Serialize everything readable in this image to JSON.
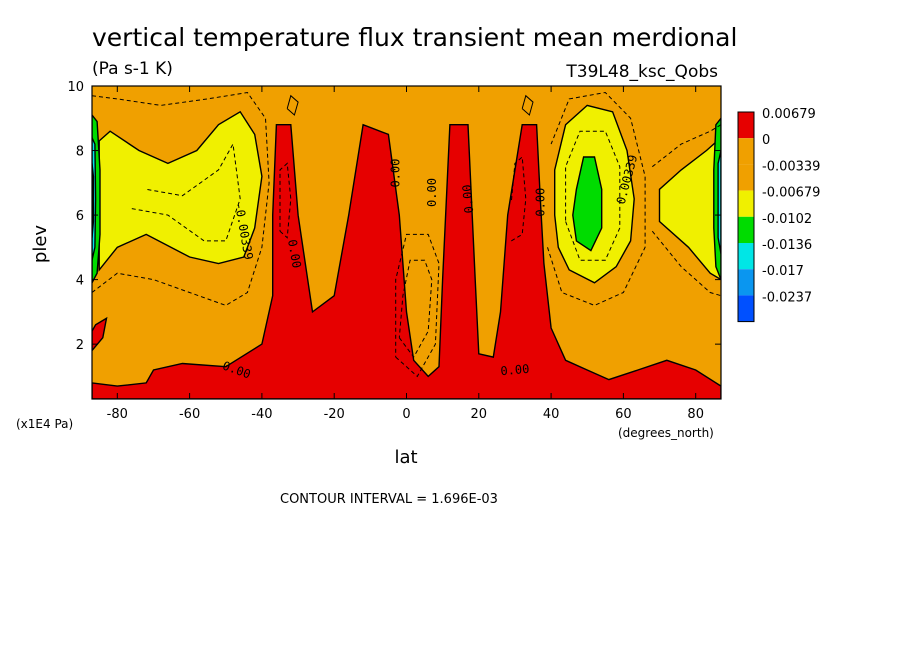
{
  "chart_data": {
    "type": "heatmap",
    "title": "vertical temperature flux transient mean merdional",
    "units": "(Pa s-1 K)",
    "experiment": "T39L48_ksc_Qobs",
    "xlabel": "lat",
    "ylabel": "plev",
    "x_unit": "(degrees_north)",
    "y_unit": "(x1E4 Pa)",
    "xlim": [
      -87,
      87
    ],
    "ylim": [
      10,
      0.3
    ],
    "x_ticks": [
      -80,
      -60,
      -40,
      -20,
      0,
      20,
      40,
      60,
      80
    ],
    "x_tick_labels": [
      "-80",
      "-60",
      "-40",
      "-20",
      "0",
      "20",
      "40",
      "60",
      "80"
    ],
    "y_ticks": [
      2,
      4,
      6,
      8,
      10
    ],
    "y_tick_labels": [
      "2",
      "4",
      "6",
      "8",
      "10"
    ],
    "contour_interval_label": "CONTOUR INTERVAL = 1.696E-03",
    "grid": false,
    "legend_position": "right",
    "levels": [
      {
        "label": "0.00679",
        "color": "#e60000"
      },
      {
        "label": "0",
        "color": "#f0a000"
      },
      {
        "label": "-0.00339",
        "color": "#f0a000"
      },
      {
        "label": "-0.00679",
        "color": "#f0f000"
      },
      {
        "label": "-0.0102",
        "color": "#00dc00"
      },
      {
        "label": "-0.0136",
        "color": "#00e6e6"
      },
      {
        "label": "-0.017",
        "color": "#0a96f0"
      },
      {
        "label": "-0.0237",
        "color": "#0050ff"
      }
    ],
    "legend_colors": [
      "#e60000",
      "#f0a000",
      "#f0a000",
      "#f0f000",
      "#00dc00",
      "#00e6e6",
      "#0a96f0",
      "#0050ff"
    ],
    "regions": [
      {
        "name": "positive-flux",
        "color": "#e60000",
        "polygon": [
          [
            -87,
            0.3
          ],
          [
            87,
            0.3
          ],
          [
            87,
            0.7
          ],
          [
            80,
            1.2
          ],
          [
            72,
            1.5
          ],
          [
            64,
            1.2
          ],
          [
            56,
            0.9
          ],
          [
            50,
            1.2
          ],
          [
            44,
            1.5
          ],
          [
            40,
            2.5
          ],
          [
            38,
            4.5
          ],
          [
            37,
            6.5
          ],
          [
            36,
            8.8
          ],
          [
            32,
            8.8
          ],
          [
            28,
            6
          ],
          [
            26,
            3
          ],
          [
            24,
            1.6
          ],
          [
            20,
            1.7
          ],
          [
            19,
            4
          ],
          [
            17,
            8.8
          ],
          [
            12,
            8.8
          ],
          [
            10,
            4
          ],
          [
            9,
            1.3
          ],
          [
            6,
            1
          ],
          [
            2,
            1.5
          ],
          [
            0,
            3
          ],
          [
            -2,
            6
          ],
          [
            -5,
            8.5
          ],
          [
            -12,
            8.8
          ],
          [
            -16,
            6
          ],
          [
            -20,
            3.5
          ],
          [
            -26,
            3
          ],
          [
            -30,
            6
          ],
          [
            -32,
            8.8
          ],
          [
            -36,
            8.8
          ],
          [
            -37,
            6
          ],
          [
            -37,
            3.5
          ],
          [
            -40,
            2
          ],
          [
            -50,
            1.3
          ],
          [
            -62,
            1.4
          ],
          [
            -70,
            1.2
          ],
          [
            -72,
            0.8
          ],
          [
            -80,
            0.7
          ],
          [
            -87,
            0.8
          ]
        ]
      },
      {
        "name": "positive-flux-small",
        "color": "#e60000",
        "polygon": [
          [
            -87,
            1.8
          ],
          [
            -84,
            2.2
          ],
          [
            -83,
            2.8
          ],
          [
            -86,
            2.6
          ],
          [
            -87,
            2.4
          ]
        ]
      },
      {
        "name": "negative-flux-sh",
        "color": "#f0f000",
        "polygon": [
          [
            -85,
            4.3
          ],
          [
            -80,
            5
          ],
          [
            -72,
            5.4
          ],
          [
            -60,
            4.7
          ],
          [
            -52,
            4.5
          ],
          [
            -45,
            4.7
          ],
          [
            -42,
            5.6
          ],
          [
            -40,
            7.2
          ],
          [
            -42,
            8.5
          ],
          [
            -46,
            9.2
          ],
          [
            -52,
            8.8
          ],
          [
            -58,
            8
          ],
          [
            -66,
            7.6
          ],
          [
            -74,
            8
          ],
          [
            -82,
            8.6
          ],
          [
            -85,
            8.3
          ]
        ]
      },
      {
        "name": "negative-flux-nh",
        "color": "#f0f000",
        "polygon": [
          [
            42,
            5
          ],
          [
            45,
            4.3
          ],
          [
            52,
            3.9
          ],
          [
            58,
            4.4
          ],
          [
            62,
            5.2
          ],
          [
            63,
            6.5
          ],
          [
            61,
            8
          ],
          [
            57,
            9.2
          ],
          [
            50,
            9.4
          ],
          [
            44,
            8.8
          ],
          [
            41,
            7.4
          ],
          [
            41,
            6
          ]
        ]
      },
      {
        "name": "negative-flux-nh-pole",
        "color": "#f0f000",
        "polygon": [
          [
            70,
            5.8
          ],
          [
            78,
            5
          ],
          [
            84,
            4.2
          ],
          [
            87,
            4
          ],
          [
            87,
            8.4
          ],
          [
            83,
            8
          ],
          [
            76,
            7.4
          ],
          [
            70,
            6.8
          ]
        ]
      },
      {
        "name": "strong-negative-flux-nh",
        "color": "#00dc00",
        "polygon": [
          [
            47,
            5.2
          ],
          [
            51,
            4.9
          ],
          [
            54,
            5.6
          ],
          [
            54,
            6.8
          ],
          [
            52,
            7.8
          ],
          [
            49,
            7.8
          ],
          [
            47,
            6.8
          ],
          [
            46,
            6
          ]
        ]
      },
      {
        "name": "polar-edge-sh-green",
        "color": "#00dc00",
        "polygon": [
          [
            -87,
            3.9
          ],
          [
            -85.6,
            4.2
          ],
          [
            -84.8,
            5.4
          ],
          [
            -84.8,
            7.4
          ],
          [
            -85.6,
            8.9
          ],
          [
            -87,
            9.1
          ]
        ]
      },
      {
        "name": "polar-edge-sh-cyan",
        "color": "#00e6e6",
        "polygon": [
          [
            -87,
            4.6
          ],
          [
            -86.2,
            5
          ],
          [
            -86,
            6.5
          ],
          [
            -86.2,
            8.2
          ],
          [
            -87,
            8.4
          ]
        ]
      },
      {
        "name": "polar-edge-sh-blue",
        "color": "#0a96f0",
        "polygon": [
          [
            -87,
            5.3
          ],
          [
            -86.6,
            5.8
          ],
          [
            -86.6,
            7.2
          ],
          [
            -87,
            7.6
          ]
        ]
      },
      {
        "name": "polar-edge-nh-green",
        "color": "#00dc00",
        "polygon": [
          [
            87,
            4
          ],
          [
            85.6,
            4.4
          ],
          [
            85,
            5.6
          ],
          [
            85,
            7.4
          ],
          [
            85.6,
            8.8
          ],
          [
            87,
            9
          ]
        ]
      },
      {
        "name": "polar-edge-nh-cyan",
        "color": "#00e6e6",
        "polygon": [
          [
            87,
            4.8
          ],
          [
            86.2,
            5.3
          ],
          [
            86.2,
            7.6
          ],
          [
            87,
            8
          ]
        ]
      }
    ],
    "contour_labels": [
      {
        "text": "0.00",
        "lat": -47,
        "plev": 1.2,
        "angle": 20
      },
      {
        "text": "0.00",
        "lat": 30,
        "plev": 1.2,
        "angle": -5
      },
      {
        "text": "-0.00339",
        "lat": -45,
        "plev": 5.5,
        "angle": 80
      },
      {
        "text": "0.00",
        "lat": -31,
        "plev": 4.8,
        "angle": 80
      },
      {
        "text": "0.00",
        "lat": -3,
        "plev": 7.3,
        "angle": -90
      },
      {
        "text": "0.00",
        "lat": 7,
        "plev": 6.7,
        "angle": -90
      },
      {
        "text": "0.00",
        "lat": 17,
        "plev": 6.5,
        "angle": -95
      },
      {
        "text": "0.00",
        "lat": 37,
        "plev": 6.4,
        "angle": -90
      },
      {
        "text": "0.00339",
        "lat": 61,
        "plev": 7.1,
        "angle": -75
      }
    ],
    "contour_lines": [
      {
        "style": "dashed",
        "points": [
          [
            -87,
            3.6
          ],
          [
            -80,
            4.2
          ],
          [
            -70,
            4
          ],
          [
            -60,
            3.6
          ],
          [
            -50,
            3.2
          ],
          [
            -44,
            3.6
          ],
          [
            -40,
            5
          ],
          [
            -38,
            7
          ],
          [
            -39,
            9
          ],
          [
            -44,
            9.8
          ],
          [
            -55,
            9.6
          ],
          [
            -68,
            9.4
          ],
          [
            -80,
            9.6
          ],
          [
            -87,
            9.7
          ]
        ]
      },
      {
        "style": "dashed",
        "points": [
          [
            -76,
            6.2
          ],
          [
            -66,
            6
          ],
          [
            -56,
            5.2
          ],
          [
            -50,
            5.2
          ],
          [
            -46,
            6.5
          ],
          [
            -48,
            8.2
          ],
          [
            -52,
            7.4
          ],
          [
            -62,
            6.6
          ],
          [
            -72,
            6.8
          ]
        ]
      },
      {
        "style": "dashed",
        "points": [
          [
            -2,
            2.2
          ],
          [
            2,
            1.6
          ],
          [
            6,
            2.4
          ],
          [
            7,
            4
          ],
          [
            5,
            4.6
          ],
          [
            1,
            4.6
          ],
          [
            -1,
            3.5
          ],
          [
            -2,
            2.2
          ]
        ]
      },
      {
        "style": "dashed",
        "points": [
          [
            -3,
            1.6
          ],
          [
            3,
            1
          ],
          [
            8,
            2
          ],
          [
            9,
            4.5
          ],
          [
            6,
            5.4
          ],
          [
            0,
            5.4
          ],
          [
            -3,
            4
          ],
          [
            -3,
            1.6
          ]
        ]
      },
      {
        "style": "dashed",
        "points": [
          [
            39,
            5
          ],
          [
            43,
            3.6
          ],
          [
            52,
            3.2
          ],
          [
            60,
            3.6
          ],
          [
            66,
            5
          ],
          [
            66,
            7.2
          ],
          [
            62,
            9
          ],
          [
            55,
            9.8
          ],
          [
            45,
            9.6
          ],
          [
            40,
            8.2
          ]
        ]
      },
      {
        "style": "dashed",
        "points": [
          [
            44,
            5.8
          ],
          [
            48,
            4.6
          ],
          [
            55,
            4.6
          ],
          [
            59,
            5.6
          ],
          [
            59,
            7.5
          ],
          [
            55,
            8.6
          ],
          [
            48,
            8.6
          ],
          [
            44,
            7.5
          ],
          [
            44,
            5.8
          ]
        ]
      },
      {
        "style": "dashed",
        "points": [
          [
            -35,
            5.5
          ],
          [
            -33,
            5.3
          ],
          [
            -32,
            6.5
          ],
          [
            -33,
            7.6
          ],
          [
            -35,
            7.4
          ],
          [
            -35,
            5.5
          ]
        ]
      },
      {
        "style": "dashed",
        "points": [
          [
            29,
            5.2
          ],
          [
            32,
            5.4
          ],
          [
            33,
            6.5
          ],
          [
            32,
            7.8
          ],
          [
            30,
            7.6
          ],
          [
            29,
            6.4
          ]
        ]
      },
      {
        "style": "dashed",
        "points": [
          [
            68,
            5.5
          ],
          [
            76,
            4.4
          ],
          [
            84,
            3.6
          ],
          [
            87,
            3.5
          ]
        ]
      },
      {
        "style": "dashed",
        "points": [
          [
            68,
            7.5
          ],
          [
            76,
            8.2
          ],
          [
            84,
            8.6
          ],
          [
            87,
            8.8
          ]
        ]
      },
      {
        "style": "solid",
        "points": [
          [
            -33,
            9.3
          ],
          [
            -31,
            9.1
          ],
          [
            -30,
            9.5
          ],
          [
            -32,
            9.7
          ],
          [
            -33,
            9.3
          ]
        ]
      },
      {
        "style": "solid",
        "points": [
          [
            32,
            9.3
          ],
          [
            34,
            9.1
          ],
          [
            35,
            9.5
          ],
          [
            33,
            9.7
          ],
          [
            32,
            9.3
          ]
        ]
      }
    ]
  }
}
